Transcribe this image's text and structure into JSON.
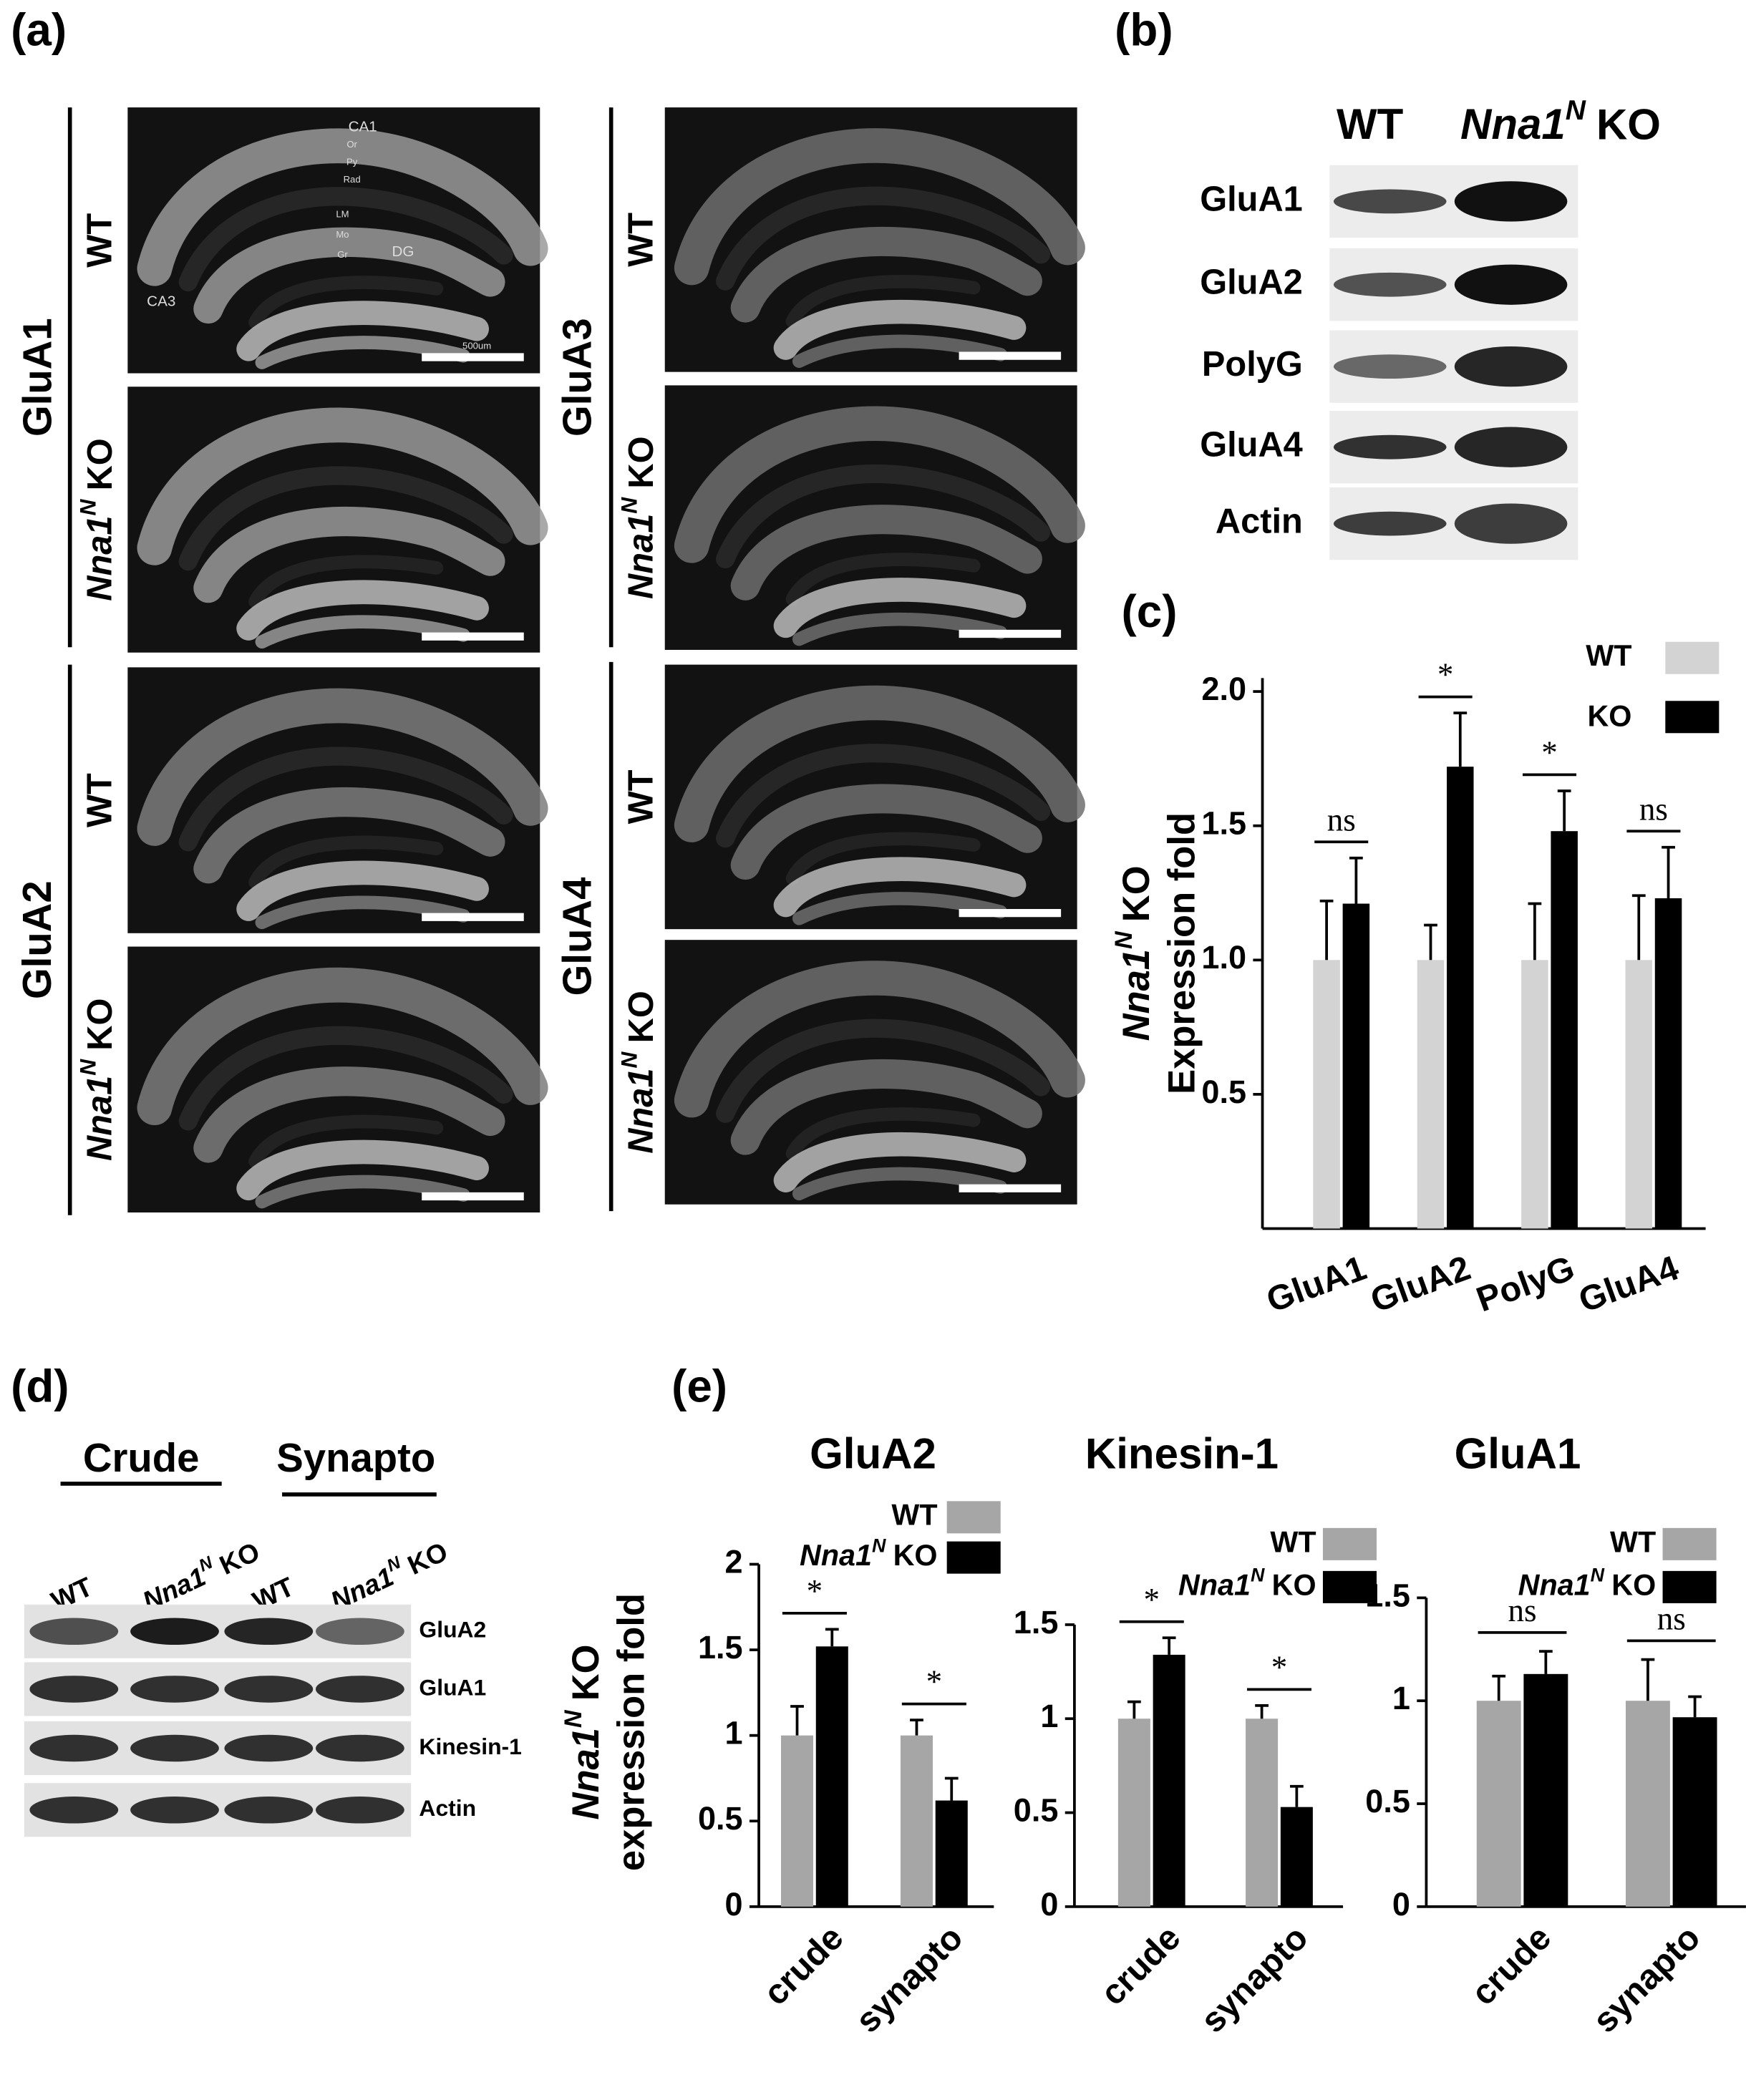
{
  "panel_labels": [
    "(a)",
    "(b)",
    "(c)",
    "(d)",
    "(e)"
  ],
  "wt_label": "WT",
  "ko_label": {
    "gene": "Nna1",
    "sup": "N",
    "rest": "KO"
  },
  "micrographs": {
    "receptors": [
      "GluA1",
      "GluA2",
      "GluA3",
      "GluA4"
    ],
    "annotations": [
      "CA1",
      "Or",
      "Py",
      "Rad",
      "LM",
      "Mo",
      "Gr",
      "DG",
      "CA3"
    ],
    "scale_bar": "500um"
  },
  "blot_b": {
    "rows": [
      "GluA1",
      "GluA2",
      "PolyG",
      "GluA4",
      "Actin"
    ]
  },
  "blot_d": {
    "groups": [
      "Crude",
      "Synapto"
    ],
    "rows": [
      "GluA2",
      "GluA1",
      "Kinesin-1",
      "Actin"
    ]
  },
  "chart_data": [
    {
      "type": "bar",
      "categories": [
        "GluA1",
        "GluA2",
        "PolyG",
        "GluA4"
      ],
      "series": [
        {
          "name": "WT",
          "color": "#d3d3d3",
          "values": [
            1,
            1,
            1,
            1
          ],
          "errors": [
            0.22,
            0.13,
            0.21,
            0.24
          ]
        },
        {
          "name": "KO",
          "color": "#000000",
          "values": [
            1.21,
            1.72,
            1.48,
            1.23
          ],
          "errors": [
            0.17,
            0.2,
            0.15,
            0.19
          ]
        }
      ],
      "significance": [
        "ns",
        "*",
        "*",
        "ns"
      ],
      "y_label": {
        "gene": "Nna1",
        "sup": "N",
        "rest": "KO",
        "text": "Expression fold"
      },
      "ylim": [
        0,
        2.05
      ],
      "yticks": [
        0.5,
        {
          "value": 1,
          "label": "1.0"
        },
        1.5,
        {
          "value": 2,
          "label": "2.0"
        }
      ]
    },
    {
      "type": "bar",
      "title": "GluA2",
      "categories": [
        "crude",
        "synapto"
      ],
      "series": [
        {
          "name": "WT",
          "color": "#a6a6a6",
          "values": [
            1,
            1
          ],
          "errors": [
            0.17,
            0.09
          ]
        },
        {
          "name": {
            "gene": "Nna1",
            "sup": "N",
            "rest": "KO"
          },
          "color": "#000000",
          "values": [
            1.52,
            0.62
          ],
          "errors": [
            0.1,
            0.13
          ]
        }
      ],
      "significance": [
        "*",
        "*"
      ],
      "y_label": {
        "gene": "Nna1",
        "sup": "N",
        "rest": "KO",
        "text": "expression fold"
      },
      "ylim": [
        0,
        2
      ],
      "yticks": [
        0,
        0.5,
        1,
        1.5,
        2
      ]
    },
    {
      "type": "bar",
      "title": "Kinesin-1",
      "categories": [
        "crude",
        "synapto"
      ],
      "series": [
        {
          "name": "WT",
          "color": "#a6a6a6",
          "values": [
            1,
            1
          ],
          "errors": [
            0.09,
            0.07
          ]
        },
        {
          "name": {
            "gene": "Nna1",
            "sup": "N",
            "rest": "KO"
          },
          "color": "#000000",
          "values": [
            1.34,
            0.53
          ],
          "errors": [
            0.09,
            0.11
          ]
        }
      ],
      "significance": [
        "*",
        "*"
      ],
      "ylim": [
        0,
        1.5
      ],
      "yticks": [
        0,
        0.5,
        1,
        1.5
      ]
    },
    {
      "type": "bar",
      "title": "GluA1",
      "categories": [
        "crude",
        "synapto"
      ],
      "series": [
        {
          "name": "WT",
          "color": "#a6a6a6",
          "values": [
            1,
            1
          ],
          "errors": [
            0.12,
            0.2
          ]
        },
        {
          "name": {
            "gene": "Nna1",
            "sup": "N",
            "rest": "KO"
          },
          "color": "#000000",
          "values": [
            1.13,
            0.92
          ],
          "errors": [
            0.11,
            0.1
          ]
        }
      ],
      "significance": [
        "ns",
        "ns"
      ],
      "ylim": [
        0,
        1.5
      ],
      "yticks": [
        0,
        0.5,
        1,
        1.5
      ]
    }
  ]
}
